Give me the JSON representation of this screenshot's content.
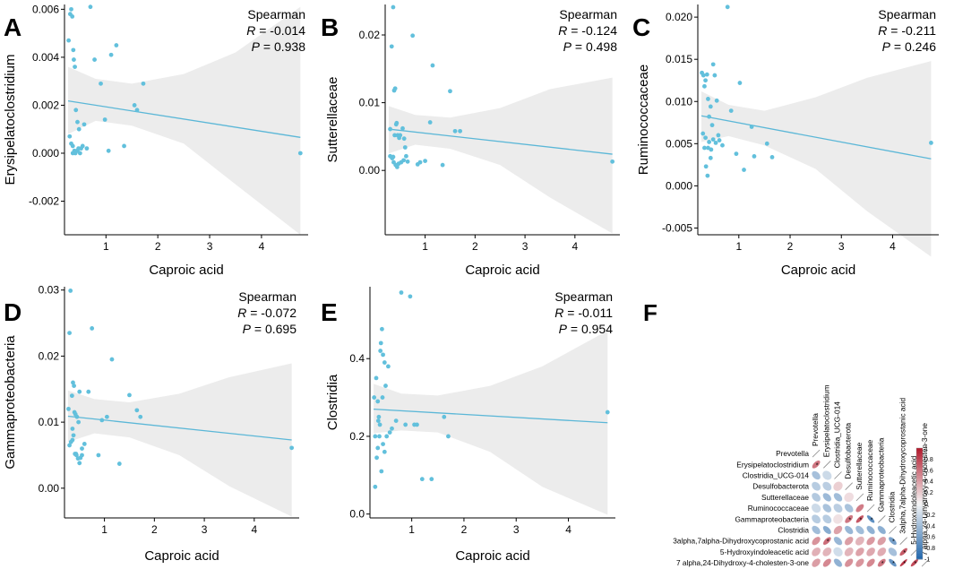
{
  "chart_data": [
    {
      "panel": "A",
      "type": "scatter",
      "title": "",
      "xlabel": "Caproic acid",
      "ylabel": "Erysipelatoclostridium",
      "xlim": [
        0.2,
        4.9
      ],
      "ylim": [
        -0.0034,
        0.0062
      ],
      "xticks": [
        1,
        2,
        3,
        4
      ],
      "yticks": [
        -0.002,
        0,
        0.002,
        0.004,
        0.006
      ],
      "ytick_labels": [
        "-0.002",
        "0.000",
        "0.002",
        "0.004",
        "0.006"
      ],
      "stats": {
        "method": "Spearman",
        "r_label": "R = -0.014",
        "p_label": "P = 0.938"
      },
      "fit": {
        "x": [
          0.27,
          4.75
        ],
        "y": [
          0.00218,
          0.00066
        ]
      },
      "band": {
        "x": [
          0.27,
          0.8,
          1.5,
          2.5,
          3.5,
          4.75
        ],
        "upper": [
          0.0036,
          0.0031,
          0.0029,
          0.0033,
          0.0042,
          0.0061
        ],
        "lower": [
          0.0008,
          0.00135,
          0.00115,
          0.0004,
          -0.0013,
          -0.0034
        ]
      },
      "points": {
        "x": [
          0.28,
          0.31,
          0.33,
          0.35,
          0.37,
          0.38,
          0.4,
          0.42,
          0.45,
          0.48,
          0.3,
          0.33,
          0.36,
          0.39,
          0.41,
          0.44,
          0.47,
          0.5,
          0.55,
          0.58,
          0.63,
          0.7,
          0.78,
          0.9,
          0.98,
          1.05,
          1.1,
          1.2,
          1.35,
          1.55,
          1.6,
          1.72,
          4.75,
          0.45,
          0.52,
          0.36
        ],
        "y": [
          0.0047,
          0.0058,
          0.006,
          0.0057,
          0.0043,
          0.0039,
          0.0036,
          0.0018,
          0.0013,
          0.001,
          0.0007,
          0.0004,
          0.0003,
          0.0001,
          0.0,
          0.0001,
          0.0002,
          0.0,
          0.0003,
          0.0012,
          0.0002,
          0.0061,
          0.0039,
          0.0029,
          0.0014,
          0.0001,
          0.0041,
          0.0045,
          0.0003,
          0.002,
          0.0018,
          0.0029,
          0.0,
          0.0001,
          0.0002,
          0.0
        ]
      }
    },
    {
      "panel": "B",
      "type": "scatter",
      "title": "",
      "xlabel": "Caproic acid",
      "ylabel": "Sutterellaceae",
      "xlim": [
        0.2,
        4.9
      ],
      "ylim": [
        -0.0095,
        0.0245
      ],
      "xticks": [
        1,
        2,
        3,
        4
      ],
      "yticks": [
        0,
        0.01,
        0.02
      ],
      "ytick_labels": [
        "0.00",
        "0.01",
        "0.02"
      ],
      "stats": {
        "method": "Spearman",
        "r_label": "R = -0.124",
        "p_label": "P = 0.498"
      },
      "fit": {
        "x": [
          0.27,
          4.75
        ],
        "y": [
          0.0061,
          0.0024
        ]
      },
      "band": {
        "x": [
          0.27,
          0.8,
          1.5,
          2.5,
          3.5,
          4.75
        ],
        "upper": [
          0.0095,
          0.0082,
          0.0078,
          0.0092,
          0.012,
          0.0137
        ],
        "lower": [
          0.0025,
          0.0038,
          0.0032,
          0.0008,
          -0.004,
          -0.0093
        ]
      },
      "points": {
        "x": [
          0.3,
          0.33,
          0.36,
          0.38,
          0.4,
          0.42,
          0.45,
          0.48,
          0.5,
          0.55,
          0.58,
          0.62,
          0.3,
          0.34,
          0.37,
          0.41,
          0.44,
          0.47,
          0.52,
          0.57,
          0.65,
          0.75,
          0.85,
          0.9,
          1.0,
          1.1,
          1.15,
          1.35,
          1.5,
          1.6,
          1.7,
          4.75,
          0.39,
          0.43,
          0.36,
          0.6
        ],
        "y": [
          0.0061,
          0.0183,
          0.0241,
          0.0118,
          0.0121,
          0.0068,
          0.0052,
          0.0048,
          0.0052,
          0.0062,
          0.0047,
          0.0021,
          0.0021,
          0.0018,
          0.0012,
          0.0008,
          0.0005,
          0.001,
          0.0012,
          0.0015,
          0.0013,
          0.0199,
          0.0009,
          0.0012,
          0.0014,
          0.0071,
          0.0155,
          0.0008,
          0.0117,
          0.0058,
          0.0058,
          0.0013,
          0.0052,
          0.007,
          0.002,
          0.0034
        ]
      }
    },
    {
      "panel": "C",
      "type": "scatter",
      "title": "",
      "xlabel": "Caproic acid",
      "ylabel": "Ruminococcaceae",
      "xlim": [
        0.2,
        4.9
      ],
      "ylim": [
        -0.0058,
        0.0215
      ],
      "xticks": [
        1,
        2,
        3,
        4
      ],
      "yticks": [
        -0.005,
        0,
        0.005,
        0.01,
        0.015,
        0.02
      ],
      "ytick_labels": [
        "-0.005",
        "0.000",
        "0.005",
        "0.010",
        "0.015",
        "0.020"
      ],
      "stats": {
        "method": "Spearman",
        "r_label": "R = -0.211",
        "p_label": "P = 0.246"
      },
      "fit": {
        "x": [
          0.27,
          4.75
        ],
        "y": [
          0.0083,
          0.0032
        ]
      },
      "band": {
        "x": [
          0.27,
          0.8,
          1.5,
          2.5,
          3.5,
          4.75
        ],
        "upper": [
          0.0112,
          0.0096,
          0.0089,
          0.0105,
          0.0128,
          0.0148
        ],
        "lower": [
          0.0052,
          0.0059,
          0.0048,
          0.002,
          -0.003,
          -0.0084
        ]
      },
      "points": {
        "x": [
          0.28,
          0.31,
          0.33,
          0.35,
          0.38,
          0.4,
          0.42,
          0.45,
          0.48,
          0.5,
          0.53,
          0.57,
          0.3,
          0.33,
          0.36,
          0.39,
          0.42,
          0.46,
          0.5,
          0.55,
          0.6,
          0.68,
          0.78,
          0.85,
          0.95,
          1.02,
          1.1,
          1.25,
          1.3,
          1.55,
          1.65,
          4.75,
          0.35,
          0.4,
          0.45,
          0.62
        ],
        "y": [
          0.0134,
          0.0131,
          0.0118,
          0.0125,
          0.0132,
          0.0103,
          0.0082,
          0.0094,
          0.0072,
          0.0144,
          0.0131,
          0.0101,
          0.0062,
          0.0045,
          0.0023,
          0.0012,
          0.0052,
          0.0043,
          0.0055,
          0.0051,
          0.006,
          0.0048,
          0.0212,
          0.0089,
          0.0038,
          0.0122,
          0.0019,
          0.007,
          0.0035,
          0.005,
          0.0034,
          0.0051,
          0.0057,
          0.0045,
          0.0033,
          0.0054
        ]
      }
    },
    {
      "panel": "D",
      "type": "scatter",
      "title": "",
      "xlabel": "Caproic acid",
      "ylabel": "Gammaproteobacteria",
      "xlim": [
        0.2,
        4.9
      ],
      "ylim": [
        -0.0045,
        0.0305
      ],
      "xticks": [
        1,
        2,
        3,
        4
      ],
      "yticks": [
        0,
        0.01,
        0.02,
        0.03
      ],
      "ytick_labels": [
        "0.00",
        "0.01",
        "0.02",
        "0.03"
      ],
      "stats": {
        "method": "Spearman",
        "r_label": "R = -0.072",
        "p_label": "P = 0.695"
      },
      "fit": {
        "x": [
          0.27,
          4.75
        ],
        "y": [
          0.0109,
          0.0073
        ]
      },
      "band": {
        "x": [
          0.27,
          0.8,
          1.5,
          2.5,
          3.5,
          4.75
        ],
        "upper": [
          0.0148,
          0.0135,
          0.013,
          0.0143,
          0.0168,
          0.0189
        ],
        "lower": [
          0.007,
          0.0083,
          0.0077,
          0.005,
          0.0003,
          -0.0043
        ]
      },
      "points": {
        "x": [
          0.28,
          0.3,
          0.32,
          0.35,
          0.37,
          0.39,
          0.42,
          0.45,
          0.48,
          0.5,
          0.55,
          0.3,
          0.33,
          0.36,
          0.38,
          0.41,
          0.44,
          0.47,
          0.5,
          0.55,
          0.6,
          0.68,
          0.75,
          0.88,
          0.95,
          1.05,
          1.15,
          1.3,
          1.5,
          1.65,
          1.72,
          4.75,
          0.4,
          0.43,
          0.36,
          0.52
        ],
        "y": [
          0.012,
          0.0235,
          0.0299,
          0.014,
          0.016,
          0.0155,
          0.0112,
          0.0108,
          0.01,
          0.0146,
          0.006,
          0.0065,
          0.007,
          0.0073,
          0.008,
          0.0052,
          0.005,
          0.0045,
          0.0038,
          0.005,
          0.0067,
          0.0146,
          0.0242,
          0.005,
          0.0103,
          0.0108,
          0.0195,
          0.0037,
          0.0141,
          0.0118,
          0.0108,
          0.0061,
          0.0115,
          0.0052,
          0.009,
          0.0046
        ]
      }
    },
    {
      "panel": "E",
      "type": "scatter",
      "title": "",
      "xlabel": "Caproic acid",
      "ylabel": "Clostridia",
      "xlim": [
        0.2,
        4.9
      ],
      "ylim": [
        -0.01,
        0.585
      ],
      "xticks": [
        1,
        2,
        3,
        4
      ],
      "yticks": [
        0,
        0.2,
        0.4
      ],
      "ytick_labels": [
        "0.0",
        "0.2",
        "0.4"
      ],
      "stats": {
        "method": "Spearman",
        "r_label": "R = -0.011",
        "p_label": "P = 0.954"
      },
      "fit": {
        "x": [
          0.27,
          4.75
        ],
        "y": [
          0.27,
          0.235
        ]
      },
      "band": {
        "x": [
          0.27,
          0.8,
          1.5,
          2.5,
          3.5,
          4.75
        ],
        "upper": [
          0.335,
          0.31,
          0.305,
          0.33,
          0.38,
          0.472
        ],
        "lower": [
          0.208,
          0.215,
          0.21,
          0.16,
          0.07,
          -0.002
        ]
      },
      "points": {
        "x": [
          0.28,
          0.3,
          0.32,
          0.35,
          0.37,
          0.39,
          0.41,
          0.43,
          0.45,
          0.48,
          0.5,
          0.55,
          0.3,
          0.33,
          0.36,
          0.38,
          0.42,
          0.45,
          0.48,
          0.52,
          0.58,
          0.62,
          0.7,
          0.8,
          0.88,
          0.97,
          1.05,
          1.1,
          1.2,
          1.38,
          1.62,
          1.7,
          4.75,
          0.4,
          0.35,
          0.44
        ],
        "y": [
          0.3,
          0.07,
          0.35,
          0.29,
          0.25,
          0.23,
          0.44,
          0.476,
          0.41,
          0.39,
          0.33,
          0.38,
          0.2,
          0.145,
          0.24,
          0.2,
          0.11,
          0.18,
          0.16,
          0.2,
          0.21,
          0.22,
          0.24,
          0.57,
          0.23,
          0.56,
          0.23,
          0.23,
          0.09,
          0.09,
          0.25,
          0.2,
          0.262,
          0.42,
          0.17,
          0.3
        ]
      }
    },
    {
      "panel": "F",
      "type": "heatmap",
      "title": "",
      "variables": [
        "Prevotella",
        "Erysipelatoclostridium",
        "Clostridia_UCG-014",
        "Desulfobacterota",
        "Sutterellaceae",
        "Ruminococcaceae",
        "Gammaproteobacteria",
        "Clostridia",
        "3alpha,7alpha-Dihydroxycoprostanic acid",
        "5-Hydroxyindoleacetic acid",
        "7 alpha,24-Dihydroxy-4-cholesten-3-one"
      ],
      "matrix": [
        [
          1.0,
          0.58,
          -0.38,
          -0.3,
          -0.32,
          -0.2,
          -0.3,
          -0.4,
          0.45,
          0.32,
          0.4
        ],
        [
          0.58,
          1.0,
          -0.2,
          -0.28,
          -0.42,
          -0.36,
          -0.3,
          -0.52,
          0.62,
          0.3,
          0.5
        ],
        [
          -0.38,
          -0.2,
          1.0,
          0.18,
          -0.4,
          -0.28,
          0.1,
          0.38,
          -0.44,
          -0.18,
          -0.48
        ],
        [
          -0.3,
          -0.28,
          0.18,
          1.0,
          0.12,
          -0.36,
          0.58,
          -0.44,
          0.4,
          0.3,
          0.46
        ],
        [
          -0.32,
          -0.42,
          -0.4,
          0.12,
          1.0,
          0.55,
          0.72,
          -0.4,
          0.3,
          0.38,
          0.44
        ],
        [
          -0.2,
          -0.36,
          -0.28,
          -0.36,
          0.55,
          1.0,
          -0.72,
          -0.48,
          0.42,
          0.36,
          0.5
        ],
        [
          -0.3,
          -0.3,
          0.1,
          0.58,
          0.72,
          -0.72,
          1.0,
          -0.5,
          0.4,
          0.34,
          0.58
        ],
        [
          -0.4,
          -0.52,
          0.38,
          -0.44,
          -0.4,
          -0.48,
          -0.5,
          1.0,
          -0.6,
          -0.38,
          -0.68
        ],
        [
          0.45,
          0.62,
          -0.44,
          0.4,
          0.3,
          0.42,
          0.4,
          -0.6,
          1.0,
          0.7,
          0.86
        ],
        [
          0.32,
          0.3,
          -0.18,
          0.3,
          0.38,
          0.36,
          0.34,
          -0.38,
          0.7,
          1.0,
          0.78
        ],
        [
          0.4,
          0.5,
          -0.48,
          0.46,
          0.44,
          0.5,
          0.58,
          -0.68,
          0.86,
          0.78,
          1.0
        ]
      ],
      "colorbar_ticks": [
        1,
        0.8,
        0.6,
        0.4,
        0.2,
        0,
        -0.2,
        -0.4,
        -0.6,
        -0.8,
        -1
      ],
      "colorbar_labels": [
        "1",
        "0.8",
        "0.6",
        "0.4",
        "0.2",
        "0",
        "-0.2",
        "-0.4",
        "-0.6",
        "-0.8",
        "-1"
      ],
      "colors": {
        "positive": "#b2182b",
        "neutral": "#f7f7f7",
        "negative": "#2166ac"
      }
    }
  ],
  "style": {
    "point_color": "#62c0dc",
    "fit_color": "#5bb7d7",
    "band_color": "#ececec"
  }
}
